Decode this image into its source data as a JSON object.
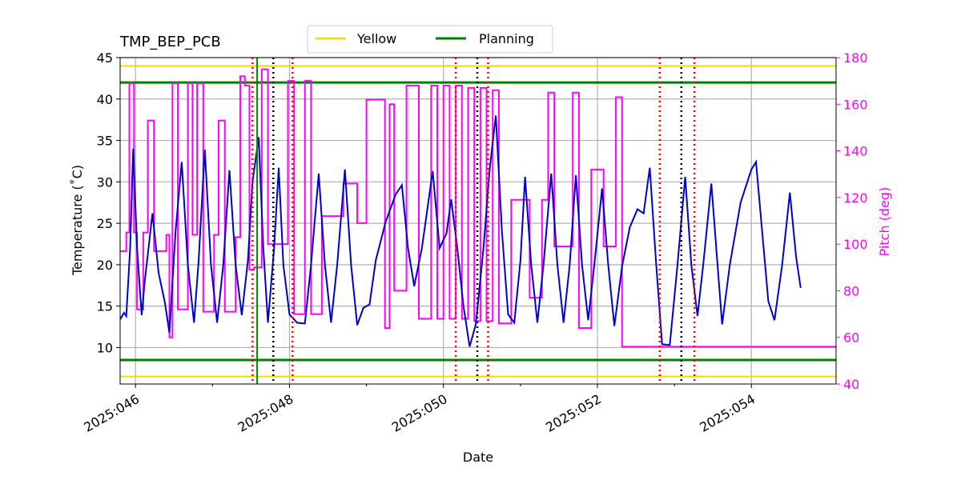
{
  "chart_data": {
    "type": "line",
    "title": "TMP_BEP_PCB",
    "xlabel": "Date",
    "ylabel": "Temperature ($^\\circ$C)",
    "ylabel_display": "Temperature (˚C)",
    "y2label": "Pitch (deg)",
    "xlim": [
      45.8,
      55.1
    ],
    "ylim": [
      5.6,
      45
    ],
    "y2lim": [
      40,
      180
    ],
    "x_ticks": [
      {
        "value": 46,
        "label": "2025:046"
      },
      {
        "value": 48,
        "label": "2025:048"
      },
      {
        "value": 50,
        "label": "2025:050"
      },
      {
        "value": 52,
        "label": "2025:052"
      },
      {
        "value": 54,
        "label": "2025:054"
      }
    ],
    "x_minor_ticks": [
      47,
      49,
      51,
      53
    ],
    "y_ticks": [
      10,
      15,
      20,
      25,
      30,
      35,
      40,
      45
    ],
    "y2_ticks": [
      40,
      60,
      80,
      100,
      120,
      140,
      160,
      180
    ],
    "grid": true,
    "legend": {
      "placement": "top-center",
      "entries": [
        {
          "label": "Yellow",
          "color": "#FFD700"
        },
        {
          "label": "Planning",
          "color": "#008000"
        }
      ]
    },
    "hlines": [
      {
        "name": "yellow-upper",
        "y": 44,
        "color": "#FFD700"
      },
      {
        "name": "yellow-lower",
        "y": 6.5,
        "color": "#FFD700"
      },
      {
        "name": "planning-upper",
        "y": 42,
        "color": "#008000"
      },
      {
        "name": "planning-lower",
        "y": 8.5,
        "color": "#008000"
      }
    ],
    "vlines_planning": [
      {
        "x": 47.58,
        "color": "#008000"
      }
    ],
    "vlines_black_dotted": [
      47.79,
      50.44,
      53.09
    ],
    "vlines_red_dotted": [
      47.52,
      48.04,
      50.16,
      50.58,
      52.81,
      53.26
    ],
    "series": [
      {
        "name": "temperature",
        "axis": "left",
        "color": "#0000CD",
        "x": [
          45.8,
          45.9,
          45.9,
          46.0,
          46.0,
          46.1,
          46.1,
          46.2,
          46.2,
          46.3,
          46.3,
          46.4,
          46.4,
          46.5,
          46.5,
          46.6,
          46.6,
          46.7,
          46.7,
          46.8,
          46.8,
          46.9,
          46.9,
          47.0,
          47.0,
          47.1,
          47.1,
          47.2,
          47.2,
          47.3,
          47.3,
          47.4,
          47.4,
          47.5,
          47.5,
          47.6,
          47.6,
          47.7,
          47.7,
          47.8,
          47.8,
          47.9,
          47.9,
          48.0,
          48.0,
          48.1,
          48.1,
          48.2,
          48.2,
          48.3,
          48.3,
          48.4,
          48.4,
          48.5,
          48.5,
          48.6,
          48.6,
          48.7,
          48.7,
          48.8,
          48.8,
          48.9,
          48.9,
          49.0,
          49.0,
          49.1,
          49.1,
          49.2,
          49.2,
          49.3,
          49.3,
          49.4,
          49.4,
          49.5,
          49.5,
          49.6,
          49.6,
          49.7,
          49.7,
          49.8,
          49.8,
          49.9,
          49.9,
          50.0,
          50.0,
          50.1,
          50.1,
          50.2,
          50.2,
          50.3,
          50.3,
          50.4,
          50.4,
          50.5,
          50.5,
          50.6,
          50.6,
          50.7,
          50.7,
          50.8,
          50.8,
          50.9,
          50.9,
          51.0,
          51.0,
          51.1,
          51.1,
          51.2,
          51.2,
          51.3,
          51.3,
          51.4,
          51.4,
          51.5,
          51.5,
          51.6,
          51.6,
          51.7,
          51.7,
          51.8,
          51.8,
          51.9,
          51.9,
          52.0,
          52.0,
          52.1,
          52.1,
          52.2,
          52.2,
          52.3,
          52.3,
          52.4,
          52.4,
          52.5,
          52.5,
          52.6,
          52.6,
          52.7,
          52.7,
          52.8,
          52.8,
          52.9,
          52.9,
          53.0,
          53.0,
          53.1,
          53.1,
          53.2,
          53.2,
          53.3,
          53.3,
          53.4,
          53.4,
          53.5,
          53.5,
          53.6,
          53.6,
          53.7,
          53.7,
          53.8,
          53.8,
          53.9,
          53.9,
          54.0,
          54.0,
          54.1,
          54.1,
          54.2,
          54.2,
          54.3,
          54.3,
          54.4,
          54.4,
          54.5,
          54.5,
          54.6,
          54.6,
          54.7,
          54.7,
          54.8,
          54.8,
          54.9,
          54.9,
          55.0,
          55.0
        ],
        "x_note": "decimal day-of-year",
        "points": [
          [
            45.8,
            13.4
          ],
          [
            45.85,
            14.2
          ],
          [
            45.88,
            13.8
          ],
          [
            45.93,
            22.0
          ],
          [
            45.97,
            34.0
          ],
          [
            46.02,
            22.0
          ],
          [
            46.08,
            13.9
          ],
          [
            46.12,
            18.0
          ],
          [
            46.22,
            26.2
          ],
          [
            46.3,
            19.0
          ],
          [
            46.38,
            15.5
          ],
          [
            46.44,
            11.8
          ],
          [
            46.52,
            24.0
          ],
          [
            46.6,
            32.4
          ],
          [
            46.68,
            20.0
          ],
          [
            46.76,
            13.0
          ],
          [
            46.82,
            20.5
          ],
          [
            46.9,
            33.9
          ],
          [
            46.98,
            20.0
          ],
          [
            47.06,
            13.0
          ],
          [
            47.14,
            20.0
          ],
          [
            47.22,
            31.4
          ],
          [
            47.3,
            20.0
          ],
          [
            47.38,
            13.9
          ],
          [
            47.46,
            20.5
          ],
          [
            47.52,
            30.0
          ],
          [
            47.6,
            35.4
          ],
          [
            47.66,
            22.0
          ],
          [
            47.72,
            13.0
          ],
          [
            47.8,
            22.0
          ],
          [
            47.86,
            31.7
          ],
          [
            47.92,
            20.0
          ],
          [
            48.0,
            14.0
          ],
          [
            48.1,
            13.0
          ],
          [
            48.2,
            12.9
          ],
          [
            48.28,
            20.0
          ],
          [
            48.38,
            31.0
          ],
          [
            48.46,
            20.0
          ],
          [
            48.54,
            13.0
          ],
          [
            48.62,
            20.0
          ],
          [
            48.72,
            31.5
          ],
          [
            48.8,
            20.0
          ],
          [
            48.88,
            12.7
          ],
          [
            48.96,
            14.8
          ],
          [
            49.04,
            15.2
          ],
          [
            49.12,
            20.5
          ],
          [
            49.25,
            25.2
          ],
          [
            49.38,
            28.5
          ],
          [
            49.46,
            29.6
          ],
          [
            49.54,
            22.0
          ],
          [
            49.62,
            17.4
          ],
          [
            49.72,
            22.0
          ],
          [
            49.86,
            31.3
          ],
          [
            49.95,
            22.0
          ],
          [
            50.04,
            23.8
          ],
          [
            50.1,
            27.9
          ],
          [
            50.18,
            22.0
          ],
          [
            50.26,
            15.0
          ],
          [
            50.34,
            10.1
          ],
          [
            50.42,
            12.8
          ],
          [
            50.52,
            22.0
          ],
          [
            50.6,
            31.5
          ],
          [
            50.68,
            38.0
          ],
          [
            50.76,
            24.0
          ],
          [
            50.84,
            14.0
          ],
          [
            50.92,
            13.0
          ],
          [
            51.0,
            20.5
          ],
          [
            51.06,
            30.6
          ],
          [
            51.14,
            20.0
          ],
          [
            51.22,
            13.0
          ],
          [
            51.3,
            20.0
          ],
          [
            51.4,
            31.0
          ],
          [
            51.48,
            20.0
          ],
          [
            51.56,
            13.0
          ],
          [
            51.64,
            20.0
          ],
          [
            51.72,
            30.8
          ],
          [
            51.8,
            20.0
          ],
          [
            51.88,
            13.3
          ],
          [
            51.96,
            20.0
          ],
          [
            52.06,
            29.2
          ],
          [
            52.14,
            20.0
          ],
          [
            52.22,
            12.6
          ],
          [
            52.32,
            19.8
          ],
          [
            52.42,
            24.5
          ],
          [
            52.52,
            26.7
          ],
          [
            52.6,
            26.2
          ],
          [
            52.68,
            31.7
          ],
          [
            52.76,
            20.5
          ],
          [
            52.84,
            10.4
          ],
          [
            52.94,
            10.3
          ],
          [
            53.04,
            20.0
          ],
          [
            53.14,
            30.6
          ],
          [
            53.22,
            20.0
          ],
          [
            53.3,
            13.8
          ],
          [
            53.38,
            20.5
          ],
          [
            53.48,
            29.8
          ],
          [
            53.56,
            20.0
          ],
          [
            53.62,
            12.8
          ],
          [
            53.72,
            20.0
          ],
          [
            53.86,
            27.5
          ],
          [
            54.0,
            31.5
          ],
          [
            54.06,
            32.4
          ],
          [
            54.14,
            24.0
          ],
          [
            54.22,
            15.6
          ],
          [
            54.3,
            13.3
          ],
          [
            54.4,
            20.0
          ],
          [
            54.5,
            28.7
          ],
          [
            54.58,
            21.0
          ],
          [
            54.64,
            17.2
          ]
        ]
      },
      {
        "name": "pitch",
        "axis": "right",
        "color": "#FF00FF",
        "step_points": [
          [
            45.8,
            97
          ],
          [
            45.88,
            105
          ],
          [
            45.92,
            169
          ],
          [
            45.98,
            105
          ],
          [
            46.02,
            72
          ],
          [
            46.1,
            105
          ],
          [
            46.16,
            153
          ],
          [
            46.24,
            97
          ],
          [
            46.36,
            97
          ],
          [
            46.4,
            104
          ],
          [
            46.44,
            60
          ],
          [
            46.48,
            169
          ],
          [
            46.55,
            72
          ],
          [
            46.62,
            72
          ],
          [
            46.68,
            169
          ],
          [
            46.74,
            104
          ],
          [
            46.8,
            169
          ],
          [
            46.88,
            71
          ],
          [
            46.96,
            71
          ],
          [
            47.02,
            104
          ],
          [
            47.08,
            153
          ],
          [
            47.16,
            71
          ],
          [
            47.24,
            71
          ],
          [
            47.3,
            103
          ],
          [
            47.36,
            172
          ],
          [
            47.42,
            168
          ],
          [
            47.48,
            89
          ],
          [
            47.54,
            90
          ],
          [
            47.64,
            175
          ],
          [
            47.72,
            100
          ],
          [
            47.82,
            100
          ],
          [
            47.9,
            100
          ],
          [
            47.98,
            170
          ],
          [
            48.06,
            70
          ],
          [
            48.14,
            70
          ],
          [
            48.2,
            170
          ],
          [
            48.28,
            70
          ],
          [
            48.36,
            70
          ],
          [
            48.42,
            112
          ],
          [
            48.54,
            112
          ],
          [
            48.62,
            112
          ],
          [
            48.7,
            126
          ],
          [
            48.8,
            126
          ],
          [
            48.88,
            109
          ],
          [
            48.94,
            109
          ],
          [
            49.0,
            162
          ],
          [
            49.08,
            162
          ],
          [
            49.16,
            162
          ],
          [
            49.24,
            64
          ],
          [
            49.3,
            160
          ],
          [
            49.36,
            80
          ],
          [
            49.44,
            80
          ],
          [
            49.52,
            168
          ],
          [
            49.6,
            168
          ],
          [
            49.68,
            68
          ],
          [
            49.76,
            68
          ],
          [
            49.84,
            168
          ],
          [
            49.92,
            68
          ],
          [
            50.0,
            168
          ],
          [
            50.08,
            68
          ],
          [
            50.16,
            168
          ],
          [
            50.24,
            68
          ],
          [
            50.32,
            167
          ],
          [
            50.4,
            67
          ],
          [
            50.48,
            167
          ],
          [
            50.56,
            67
          ],
          [
            50.64,
            166
          ],
          [
            50.72,
            66
          ],
          [
            50.8,
            66
          ],
          [
            50.88,
            119
          ],
          [
            50.96,
            119
          ],
          [
            51.04,
            119
          ],
          [
            51.12,
            77
          ],
          [
            51.2,
            77
          ],
          [
            51.28,
            119
          ],
          [
            51.36,
            165
          ],
          [
            51.44,
            99
          ],
          [
            51.52,
            99
          ],
          [
            51.6,
            99
          ],
          [
            51.68,
            165
          ],
          [
            51.76,
            64
          ],
          [
            51.84,
            64
          ],
          [
            51.92,
            132
          ],
          [
            52.0,
            132
          ],
          [
            52.08,
            99
          ],
          [
            52.16,
            99
          ],
          [
            52.24,
            163
          ],
          [
            52.32,
            56
          ]
        ]
      }
    ]
  }
}
